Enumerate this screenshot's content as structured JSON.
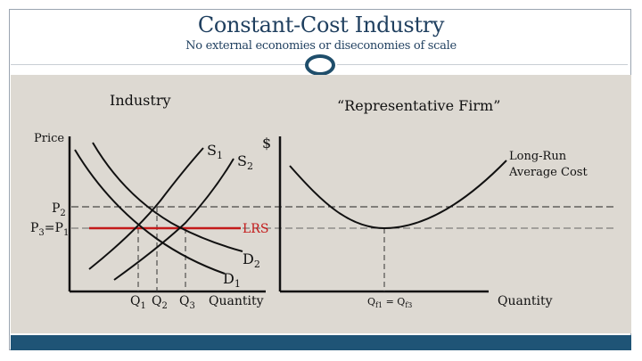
{
  "header": {
    "title": "Constant-Cost Industry",
    "subtitle": "No external economies or diseconomies of scale"
  },
  "industry": {
    "panel_label": "Industry",
    "y_label": "Price",
    "price_labels": {
      "p2": "P",
      "p2_sub": "2",
      "p3": "P",
      "p3_sub": "3",
      "p1": "=P",
      "p1_sub": "1"
    },
    "supply_labels": {
      "s1": "S",
      "s1_sub": "1",
      "s2": "S",
      "s2_sub": "2"
    },
    "lrs_label": "LRS",
    "demand_labels": {
      "d2": "D",
      "d2_sub": "2",
      "d1": "D",
      "d1_sub": "1"
    },
    "q_labels": {
      "q1": "Q",
      "q1_sub": "1",
      "q2": "Q",
      "q2_sub": "2",
      "q3": "Q",
      "q3_sub": "3"
    },
    "x_label": "Quantity"
  },
  "firm": {
    "panel_label": "“Representative Firm”",
    "y_label": "$",
    "curve_label_line1": "Long-Run",
    "curve_label_line2": "Average Cost",
    "q_label": "Q",
    "q_label_sub1": "f1",
    "q_label_mid": " = Q",
    "q_label_sub2": "f3",
    "x_label": "Quantity"
  },
  "colors": {
    "title": "#1f3f5f",
    "panel": "#ddd9d2",
    "lrs": "#c41a1a",
    "footer_bar": "#1f5476",
    "oval": "#1f4e6b"
  }
}
